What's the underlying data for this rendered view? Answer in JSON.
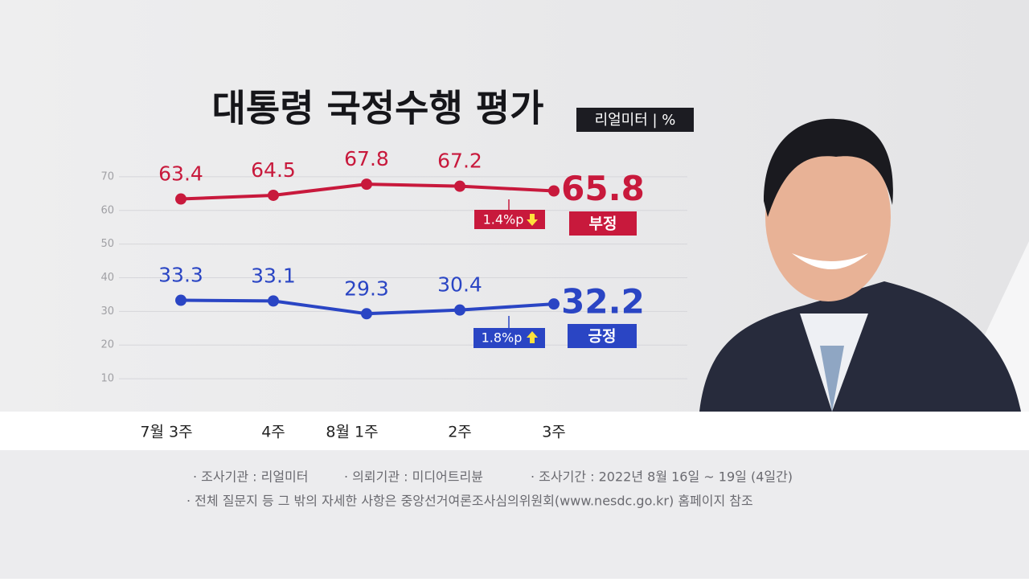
{
  "chart_data": {
    "type": "line",
    "title": "대통령 국정수행 평가",
    "source_badge": "리얼미터 | %",
    "categories": [
      "7월 3주",
      "4주",
      "8월 1주",
      "2주",
      "3주"
    ],
    "series": [
      {
        "name": "부정",
        "color": "#c8193c",
        "values": [
          63.4,
          64.5,
          67.8,
          67.2,
          65.8
        ],
        "change": "1.4%p"
      },
      {
        "name": "긍정",
        "color": "#2a45c4",
        "values": [
          33.3,
          33.1,
          29.3,
          30.4,
          32.2
        ],
        "change": "1.8%p"
      }
    ],
    "ylim": [
      5,
      75
    ],
    "yticks": [
      10,
      20,
      30,
      40,
      50,
      60,
      70
    ],
    "grid": true,
    "footnotes": [
      "· 조사기관 : 리얼미터",
      "· 의뢰기관 : 미디어트리뷴",
      "· 조사기간 : 2022년 8월 16일 ~ 19일 (4일간)",
      "· 전체 질문지 등 그 밖의 자세한 사항은 중앙선거여론조사심의위원회(www.nesdc.go.kr) 홈페이지 참조"
    ]
  }
}
